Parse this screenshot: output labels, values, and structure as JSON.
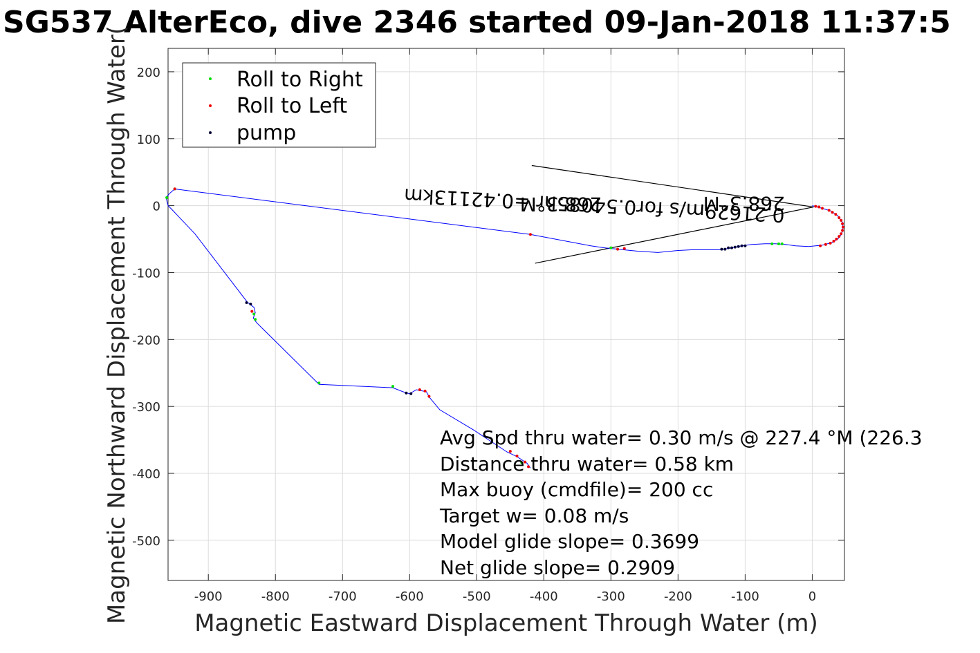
{
  "chart_data": {
    "type": "line",
    "title": "SG537 AlterEco, dive 2346 started 09-Jan-2018 11:37:5",
    "xlabel": "Magnetic Eastward Displacement Through Water (m)",
    "ylabel": "Magnetic Northward Displacement Through Water(",
    "xlim": [
      -960,
      48
    ],
    "ylim": [
      -560,
      235
    ],
    "xticks": [
      -900,
      -800,
      -700,
      -600,
      -500,
      -400,
      -300,
      -200,
      -100,
      0
    ],
    "yticks": [
      200,
      100,
      0,
      -100,
      -200,
      -300,
      -400,
      -500
    ],
    "grid": true,
    "legend": {
      "placement": "top-left",
      "entries": [
        {
          "label": "Roll to Right",
          "color": "#00dd00"
        },
        {
          "label": "Roll to Left",
          "color": "#ee0000"
        },
        {
          "label": "pump",
          "color": "#000033"
        }
      ]
    },
    "track": {
      "color": "#0000ff",
      "points": [
        [
          0,
          0
        ],
        [
          15,
          -4
        ],
        [
          28,
          -8
        ],
        [
          38,
          -15
        ],
        [
          45,
          -25
        ],
        [
          46,
          -33
        ],
        [
          44,
          -42
        ],
        [
          38,
          -50
        ],
        [
          30,
          -55
        ],
        [
          15,
          -59
        ],
        [
          -5,
          -61
        ],
        [
          -25,
          -60
        ],
        [
          -40,
          -58
        ],
        [
          -55,
          -57
        ],
        [
          -70,
          -57
        ],
        [
          -90,
          -58
        ],
        [
          -105,
          -60
        ],
        [
          -115,
          -62
        ],
        [
          -125,
          -64
        ],
        [
          -140,
          -66
        ],
        [
          -160,
          -66
        ],
        [
          -180,
          -66
        ],
        [
          -200,
          -67
        ],
        [
          -230,
          -70
        ],
        [
          -260,
          -68
        ],
        [
          -290,
          -65
        ],
        [
          -310,
          -63
        ],
        [
          -330,
          -60
        ],
        [
          -420,
          -43
        ],
        [
          -950,
          25
        ],
        [
          -958,
          18
        ],
        [
          -963,
          12
        ],
        [
          -960,
          0
        ],
        [
          -955,
          -5
        ],
        [
          -920,
          -42
        ],
        [
          -842,
          -144
        ],
        [
          -832,
          -152
        ],
        [
          -830,
          -160
        ],
        [
          -833,
          -168
        ],
        [
          -828,
          -175
        ],
        [
          -735,
          -267
        ],
        [
          -625,
          -272
        ],
        [
          -610,
          -278
        ],
        [
          -600,
          -281
        ],
        [
          -590,
          -275
        ],
        [
          -575,
          -278
        ],
        [
          -570,
          -287
        ],
        [
          -555,
          -305
        ],
        [
          -505,
          -335
        ],
        [
          -455,
          -368
        ],
        [
          -440,
          -375
        ],
        [
          -425,
          -385
        ],
        [
          -420,
          -392
        ]
      ]
    },
    "markers": {
      "roll_right": [
        [
          -962,
          12
        ],
        [
          -832,
          -162
        ],
        [
          -830,
          -170
        ],
        [
          -735,
          -265
        ],
        [
          -625,
          -270
        ],
        [
          -60,
          -57
        ],
        [
          -50,
          -57
        ],
        [
          -45,
          -57
        ],
        [
          -300,
          -63
        ],
        [
          -433,
          -384
        ],
        [
          -950,
          25
        ]
      ],
      "roll_left": [
        [
          -585,
          -275
        ],
        [
          -577,
          -277
        ],
        [
          -571,
          -285
        ],
        [
          -450,
          -367
        ],
        [
          -440,
          -374
        ],
        [
          -428,
          -383
        ],
        [
          -423,
          -390
        ],
        [
          -420,
          -43
        ],
        [
          -290,
          -65
        ],
        [
          -280,
          -64
        ],
        [
          5,
          -1
        ],
        [
          10,
          -2
        ],
        [
          15,
          -4
        ],
        [
          25,
          -7
        ],
        [
          30,
          -10
        ],
        [
          35,
          -13
        ],
        [
          40,
          -18
        ],
        [
          43,
          -22
        ],
        [
          45,
          -27
        ],
        [
          46,
          -32
        ],
        [
          45,
          -37
        ],
        [
          43,
          -42
        ],
        [
          40,
          -46
        ],
        [
          36,
          -50
        ],
        [
          32,
          -53
        ],
        [
          27,
          -56
        ],
        [
          20,
          -58
        ],
        [
          12,
          -60
        ],
        [
          -950,
          25
        ],
        [
          -835,
          -158
        ]
      ],
      "pump": [
        [
          -843,
          -145
        ],
        [
          -837,
          -147
        ],
        [
          -605,
          -280
        ],
        [
          -598,
          -281
        ],
        [
          -135,
          -65
        ],
        [
          -130,
          -65
        ],
        [
          -125,
          -63
        ],
        [
          -120,
          -63
        ],
        [
          -115,
          -62
        ],
        [
          -110,
          -61
        ],
        [
          -105,
          -60
        ],
        [
          -100,
          -60
        ]
      ]
    },
    "heading_lines": [
      {
        "x": [
          -418,
          2
        ],
        "y": [
          60,
          -2
        ]
      },
      {
        "x": [
          -413,
          2
        ],
        "y": [
          -86,
          -2
        ]
      }
    ],
    "annotations": [
      "268.3°M",
      "0.21629m/s for0.54085hr =0.42113km",
      "268.3°M"
    ],
    "stats": [
      "Avg Spd thru water=  0.30 m/s @ 227.4 °M (226.3",
      "Distance thru water=  0.58 km",
      "Max buoy (cmdfile)= 200 cc",
      "Target w= 0.08 m/s",
      "Model glide slope= 0.3699",
      "Net glide slope= 0.2909"
    ]
  }
}
